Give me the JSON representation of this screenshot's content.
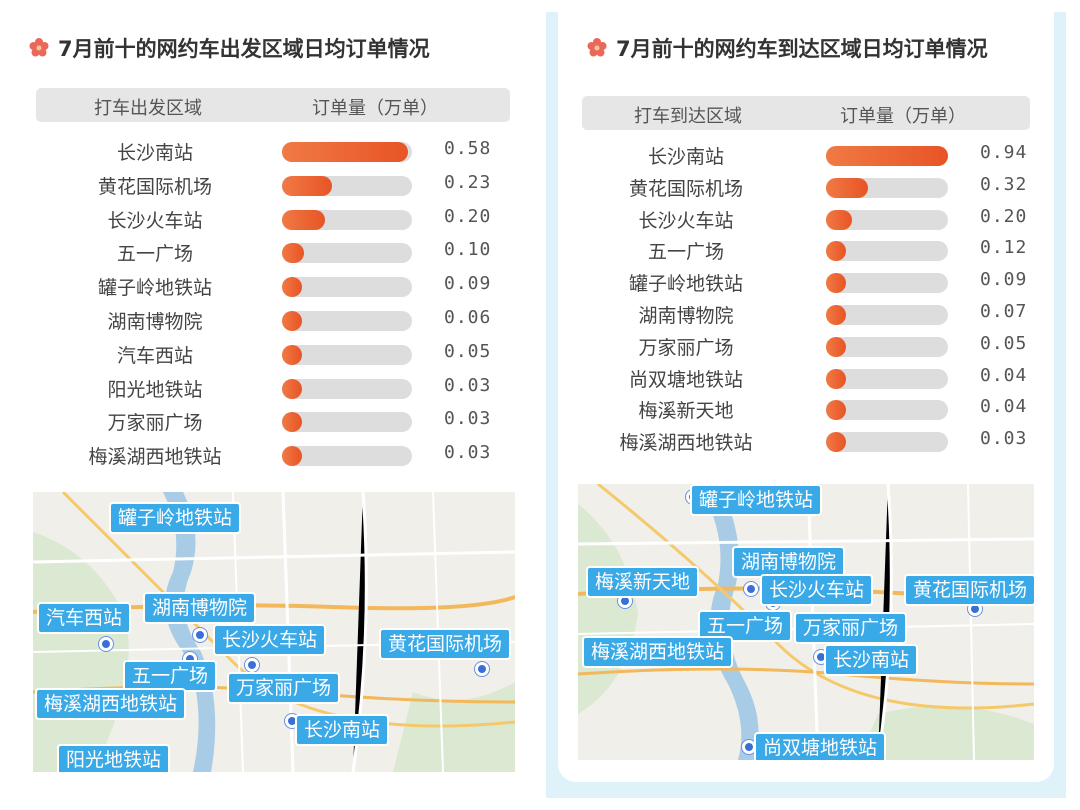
{
  "left": {
    "title": "7月前十的网约车出发区域日均订单情况",
    "header": {
      "col_area": "打车出发区域",
      "col_orders": "订单量（万单）"
    },
    "chart_data": {
      "type": "bar",
      "orientation": "horizontal",
      "title": "7月前十的网约车出发区域日均订单情况",
      "xlabel": "订单量（万单）",
      "ylabel": "打车出发区域",
      "categories": [
        "长沙南站",
        "黄花国际机场",
        "长沙火车站",
        "五一广场",
        "罐子岭地铁站",
        "湖南博物院",
        "汽车西站",
        "阳光地铁站",
        "万家丽广场",
        "梅溪湖西地铁站"
      ],
      "values": [
        0.58,
        0.23,
        0.2,
        0.1,
        0.09,
        0.06,
        0.05,
        0.03,
        0.03,
        0.03
      ],
      "value_labels": [
        "0.58",
        "0.23",
        "0.20",
        "0.10",
        "0.09",
        "0.06",
        "0.05",
        "0.03",
        "0.03",
        "0.03"
      ],
      "xlim": [
        0,
        0.6
      ]
    },
    "map_labels": [
      "罐子岭地铁站",
      "汽车西站",
      "湖南博物院",
      "长沙火车站",
      "五一广场",
      "黄花国际机场",
      "万家丽广场",
      "梅溪湖西地铁站",
      "长沙南站",
      "阳光地铁站"
    ]
  },
  "right": {
    "title": "7月前十的网约车到达区域日均订单情况",
    "header": {
      "col_area": "打车到达区域",
      "col_orders": "订单量（万单）"
    },
    "chart_data": {
      "type": "bar",
      "orientation": "horizontal",
      "title": "7月前十的网约车到达区域日均订单情况",
      "xlabel": "订单量（万单）",
      "ylabel": "打车到达区域",
      "categories": [
        "长沙南站",
        "黄花国际机场",
        "长沙火车站",
        "五一广场",
        "罐子岭地铁站",
        "湖南博物院",
        "万家丽广场",
        "尚双塘地铁站",
        "梅溪新天地",
        "梅溪湖西地铁站"
      ],
      "values": [
        0.94,
        0.32,
        0.2,
        0.12,
        0.09,
        0.07,
        0.05,
        0.04,
        0.04,
        0.03
      ],
      "value_labels": [
        "0.94",
        "0.32",
        "0.20",
        "0.12",
        "0.09",
        "0.07",
        "0.05",
        "0.04",
        "0.04",
        "0.03"
      ],
      "xlim": [
        0,
        0.94
      ]
    },
    "map_labels": [
      "罐子岭地铁站",
      "湖南博物院",
      "梅溪新天地",
      "长沙火车站",
      "黄花国际机场",
      "五一广场",
      "万家丽广场",
      "梅溪湖西地铁站",
      "长沙南站",
      "尚双塘地铁站"
    ]
  },
  "colors": {
    "bar_fill": "#e85425",
    "bar_track": "#dddddd",
    "header_bg": "#e6e6e6",
    "tag_bg": "#3aa9e8",
    "pin": "#3b6fd8",
    "right_frame": "#dff1f9",
    "flower": "#e8685a"
  },
  "icons": {
    "title_marker": "flower-icon",
    "map_pin": "location-pin-icon"
  }
}
